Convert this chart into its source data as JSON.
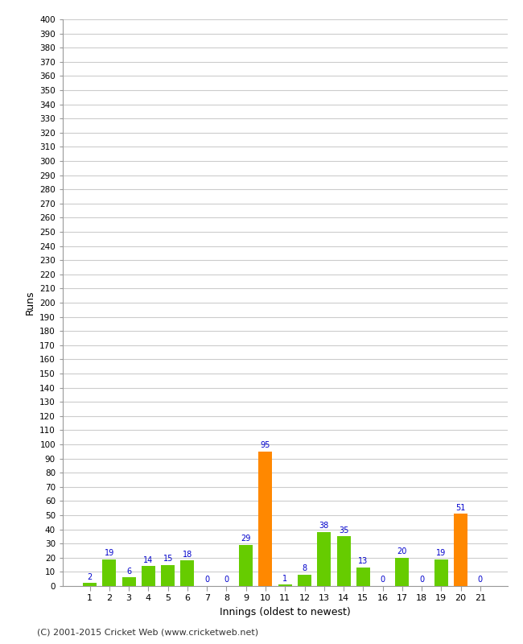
{
  "innings": [
    1,
    2,
    3,
    4,
    5,
    6,
    7,
    8,
    9,
    10,
    11,
    12,
    13,
    14,
    15,
    16,
    17,
    18,
    19,
    20,
    21
  ],
  "runs": [
    2,
    19,
    6,
    14,
    15,
    18,
    0,
    0,
    29,
    95,
    1,
    8,
    38,
    35,
    13,
    0,
    20,
    0,
    19,
    51,
    0
  ],
  "is_orange": [
    false,
    false,
    false,
    false,
    false,
    false,
    false,
    false,
    false,
    true,
    false,
    false,
    false,
    false,
    false,
    false,
    false,
    false,
    false,
    true,
    false
  ],
  "green_color": "#66cc00",
  "orange_color": "#ff8800",
  "xlabel": "Innings (oldest to newest)",
  "ylabel": "Runs",
  "ylim": [
    0,
    400
  ],
  "yticks": [
    0,
    10,
    20,
    30,
    40,
    50,
    60,
    70,
    80,
    90,
    100,
    110,
    120,
    130,
    140,
    150,
    160,
    170,
    180,
    190,
    200,
    210,
    220,
    230,
    240,
    250,
    260,
    270,
    280,
    290,
    300,
    310,
    320,
    330,
    340,
    350,
    360,
    370,
    380,
    390,
    400
  ],
  "label_color": "#0000cc",
  "footer": "(C) 2001-2015 Cricket Web (www.cricketweb.net)",
  "background_color": "#ffffff",
  "grid_color": "#cccccc",
  "bar_width": 0.7
}
